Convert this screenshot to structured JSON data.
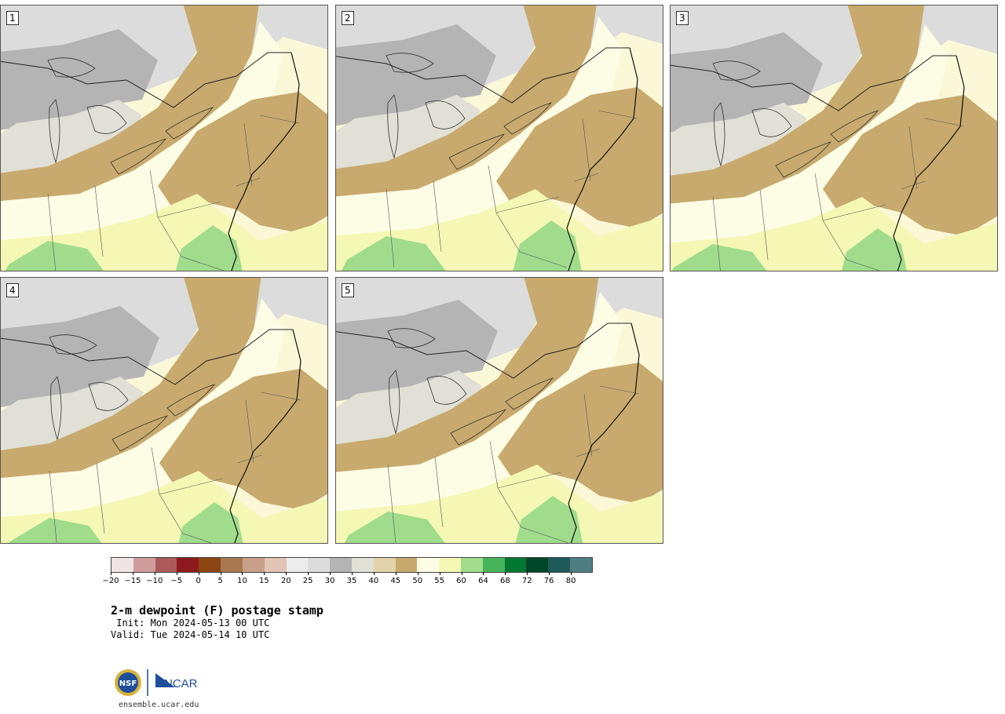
{
  "panels": [
    {
      "label": "1"
    },
    {
      "label": "2"
    },
    {
      "label": "3"
    },
    {
      "label": "4"
    },
    {
      "label": "5"
    }
  ],
  "colorbar": {
    "colors": [
      "#f0e4e4",
      "#d09c9c",
      "#aa5a5a",
      "#8c1a1e",
      "#8c4614",
      "#aa7850",
      "#c8a08a",
      "#e0c4b4",
      "#ececec",
      "#dcdcdc",
      "#b4b4b4",
      "#e0e0d6",
      "#e2d2aa",
      "#c8aa6e",
      "#fdfde6",
      "#f4f8b4",
      "#a0dc8c",
      "#46b45a",
      "#007832",
      "#00462a",
      "#1e5a5a",
      "#4e7e82"
    ],
    "ticks": [
      "−20",
      "−15",
      "−10",
      "−5",
      "0",
      "5",
      "10",
      "15",
      "20",
      "25",
      "30",
      "35",
      "40",
      "45",
      "50",
      "55",
      "60",
      "64",
      "68",
      "72",
      "76",
      "80"
    ]
  },
  "title": "2-m dewpoint (F) postage stamp",
  "init": " Init: Mon 2024-05-13 00 UTC",
  "valid": "Valid: Tue 2024-05-14 10 UTC",
  "logo": {
    "nsf": "NSF",
    "ncar": "NCAR"
  },
  "url": "ensemble.ucar.edu"
}
